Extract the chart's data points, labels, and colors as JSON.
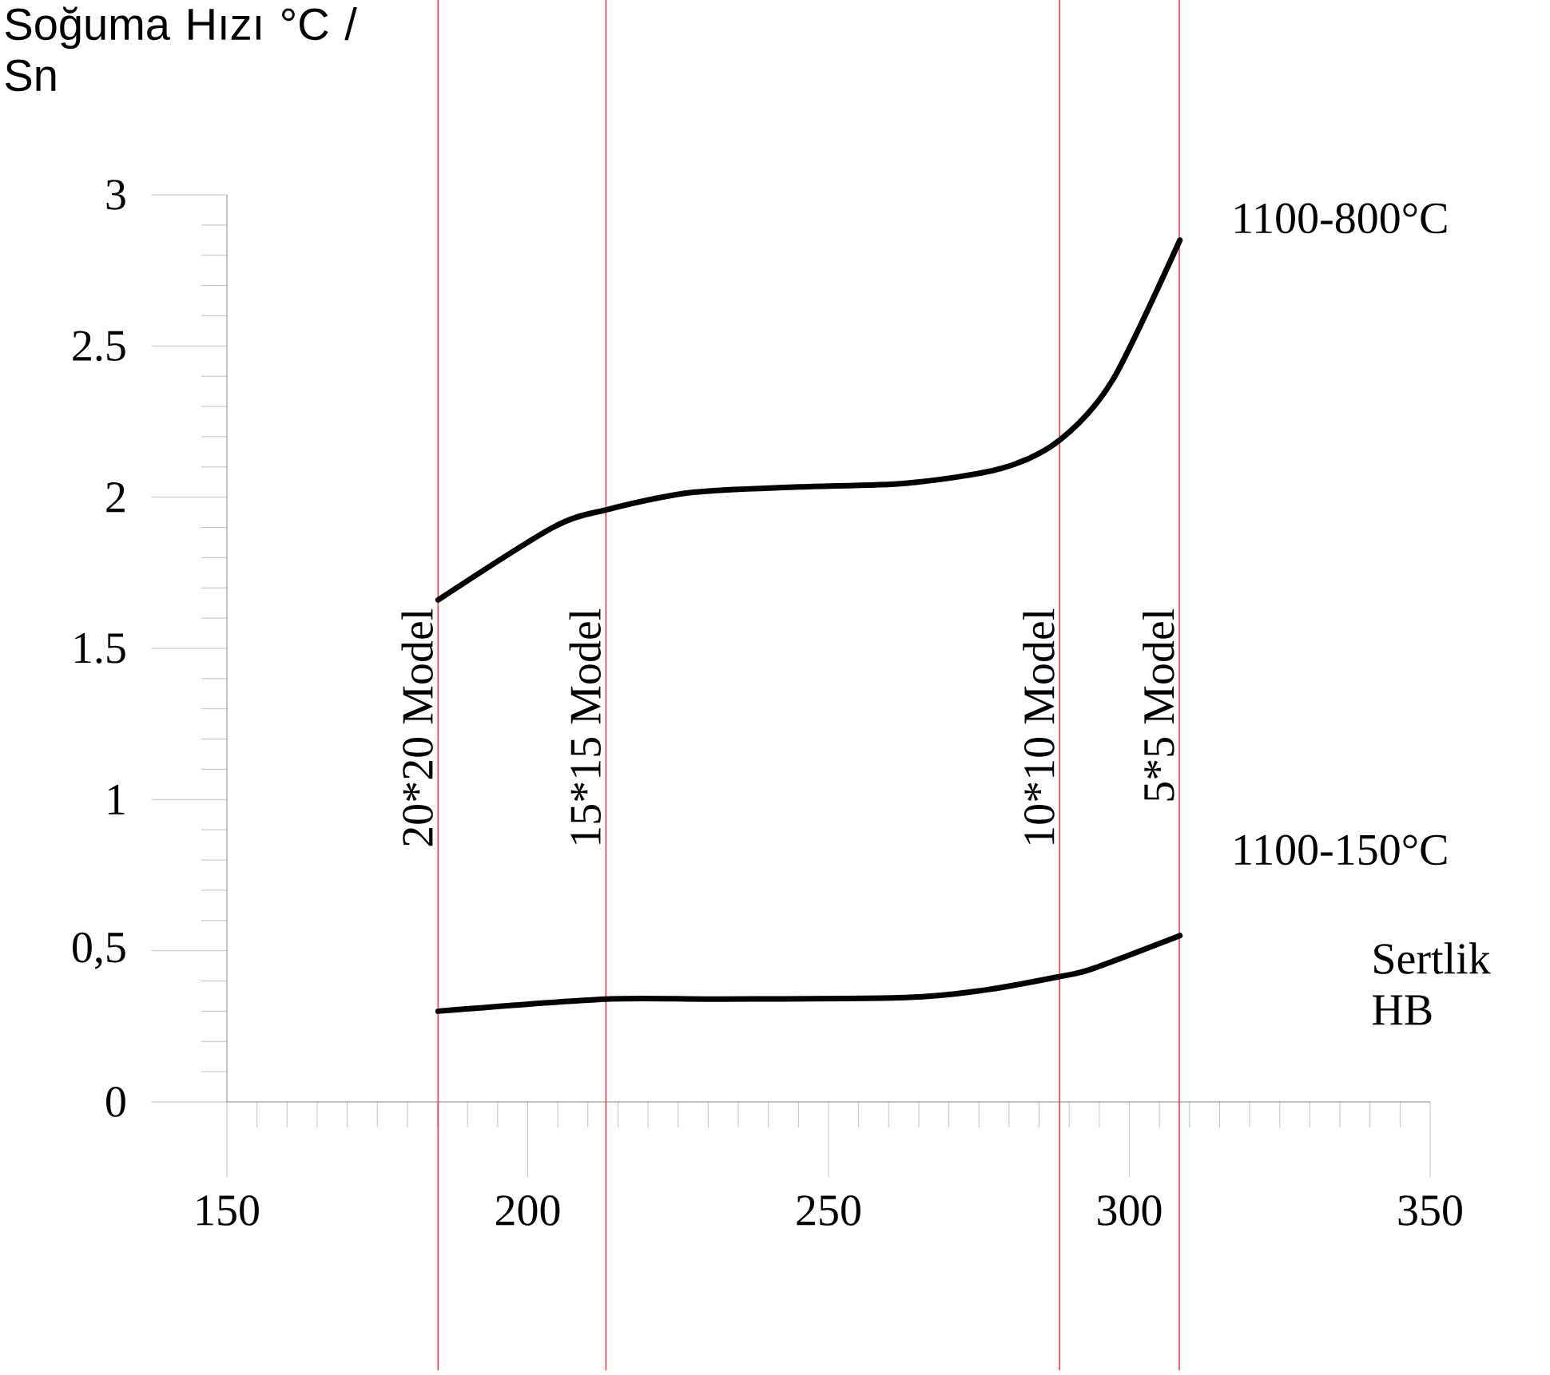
{
  "chart_data": {
    "type": "line",
    "xlabel": "Sertlik HB",
    "ylabel": "Soğuma Hızı °C / Sn",
    "xlim": [
      150,
      350
    ],
    "xticks": [
      150,
      200,
      250,
      300,
      350
    ],
    "ylim": [
      0,
      3
    ],
    "yticks": [
      0,
      {
        "value": 0.5,
        "label": "0,5"
      },
      1,
      1.5,
      2,
      2.5,
      3
    ],
    "line_style": "solid",
    "marker": "none",
    "grid": false,
    "series": [
      {
        "name": "1100-800°C",
        "color": "#000000",
        "x": [
          185.1,
          204.2,
          213.4,
          227.5,
          245.1,
          262.8,
          278.7,
          288.5,
          297.3,
          308.4
        ],
        "values": [
          1.66,
          1.9,
          1.96,
          2.016,
          2.034,
          2.046,
          2.095,
          2.19,
          2.39,
          2.85
        ]
      },
      {
        "name": "1100-150°C",
        "color": "#000000",
        "x": [
          185.1,
          213,
          231.8,
          262.8,
          276,
          288.5,
          293.8,
          308.4
        ],
        "values": [
          0.3,
          0.34,
          0.34,
          0.345,
          0.37,
          0.415,
          0.44,
          0.55
        ]
      }
    ],
    "ref_lines": [
      {
        "axis": "x",
        "value": 185.1,
        "label": "20*20 Model",
        "color": "#ff4040"
      },
      {
        "axis": "x",
        "value": 213,
        "label": "15*15 Model",
        "color": "#ff4040"
      },
      {
        "axis": "x",
        "value": 288.4,
        "label": "10*10 Model",
        "color": "#ff4040"
      },
      {
        "axis": "x",
        "value": 308.3,
        "label": "5*5 Model",
        "color": "#ff4040"
      }
    ]
  }
}
